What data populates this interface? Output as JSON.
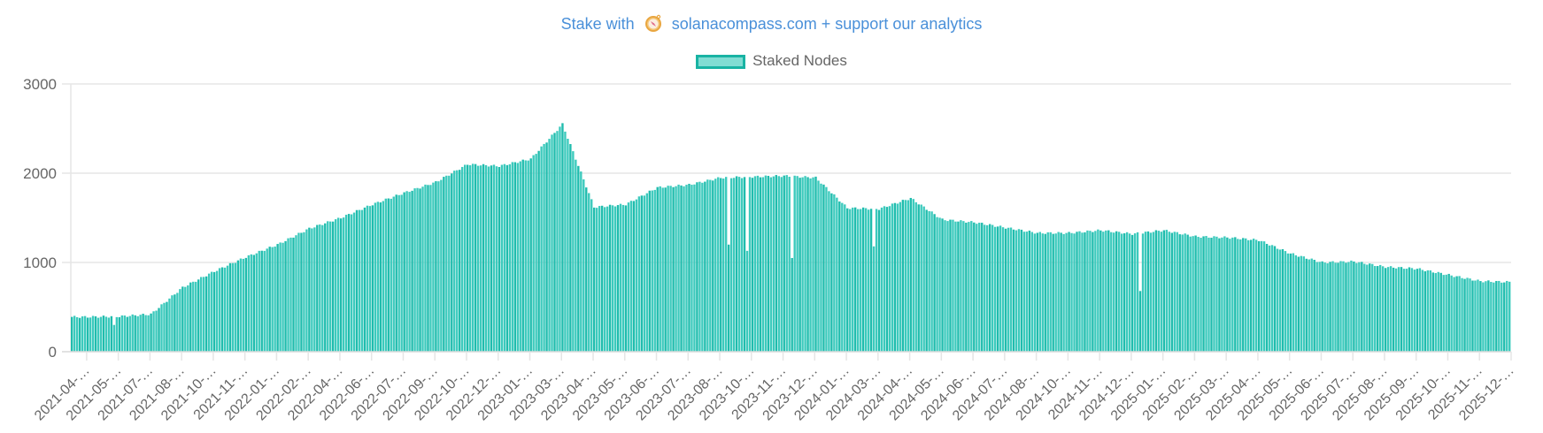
{
  "promo": {
    "prefix": "Stake with",
    "icon": "compass-icon",
    "link_text": "solanacompass.com + support our analytics",
    "color": "#4a90d9"
  },
  "legend": {
    "label": "Staked Nodes",
    "fill": "#7dd9cf",
    "border": "#18b3a3"
  },
  "chart_data": {
    "type": "bar",
    "title": "",
    "xlabel": "",
    "ylabel": "",
    "ylim": [
      0,
      3000
    ],
    "yticks": [
      0,
      1000,
      2000,
      3000
    ],
    "grid": true,
    "legend_position": "top",
    "series": [
      {
        "name": "Staked Nodes",
        "color": "#2ec4b6"
      }
    ],
    "categories": [
      "2021-04-…",
      "2021-05-…",
      "2021-07-…",
      "2021-08-…",
      "2021-10-…",
      "2021-11-…",
      "2022-01-…",
      "2022-02-…",
      "2022-04-…",
      "2022-06-…",
      "2022-07-…",
      "2022-09-…",
      "2022-10-…",
      "2022-12-…",
      "2023-01-…",
      "2023-03-…",
      "2023-04-…",
      "2023-05-…",
      "2023-06-…",
      "2023-07-…",
      "2023-08-…",
      "2023-10-…",
      "2023-11-…",
      "2023-12-…",
      "2024-01-…",
      "2024-03-…",
      "2024-04-…",
      "2024-05-…",
      "2024-06-…",
      "2024-07-…",
      "2024-08-…",
      "2024-10-…",
      "2024-11-…",
      "2024-12-…",
      "2025-01-…",
      "2025-02-…",
      "2025-03-…",
      "2025-04-…",
      "2025-05-…",
      "2025-06-…",
      "2025-07-…",
      "2025-08-…",
      "2025-09-…",
      "2025-10-…",
      "2025-11-…",
      "2025-12-…"
    ],
    "approx_values_at_ticks": [
      390,
      395,
      420,
      720,
      900,
      1060,
      1200,
      1380,
      1500,
      1650,
      1780,
      1900,
      2100,
      2080,
      2160,
      2550,
      1620,
      1650,
      1840,
      1870,
      1950,
      1960,
      1970,
      1950,
      1610,
      1600,
      1720,
      1480,
      1450,
      1390,
      1330,
      1330,
      1360,
      1320,
      1360,
      1290,
      1280,
      1250,
      1100,
      1000,
      1010,
      950,
      930,
      860,
      790,
      780
    ],
    "anomalies": [
      {
        "near": "2021-05",
        "value": 300
      },
      {
        "near": "2023-08",
        "value": 1200
      },
      {
        "near": "2023-10",
        "value": 1130
      },
      {
        "near": "2023-11",
        "value": 1050
      },
      {
        "near": "2024-03",
        "value": 1180
      },
      {
        "near": "2024-12",
        "value": 680
      }
    ]
  }
}
